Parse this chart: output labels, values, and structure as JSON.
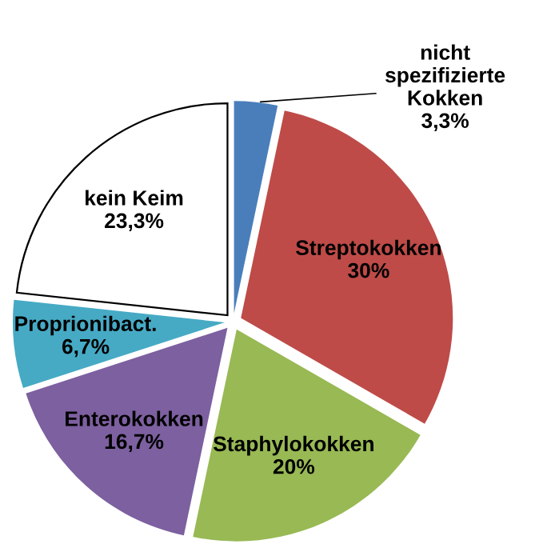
{
  "chart_data": {
    "type": "pie",
    "categories": [
      "nicht spezifizierte Kokken",
      "Streptokokken",
      "Staphylokokken",
      "Enterokokken",
      "Proprionibact.",
      "kein Keim"
    ],
    "values": [
      3.3,
      30,
      20,
      16.7,
      6.7,
      23.3
    ],
    "value_labels": [
      "3,3%",
      "30%",
      "20%",
      "16,7%",
      "6,7%",
      "23,3%"
    ],
    "colors": [
      "#4a7ebb",
      "#be4b48",
      "#98b954",
      "#7d60a0",
      "#46aac5",
      "#ffffff"
    ],
    "legend": false
  }
}
